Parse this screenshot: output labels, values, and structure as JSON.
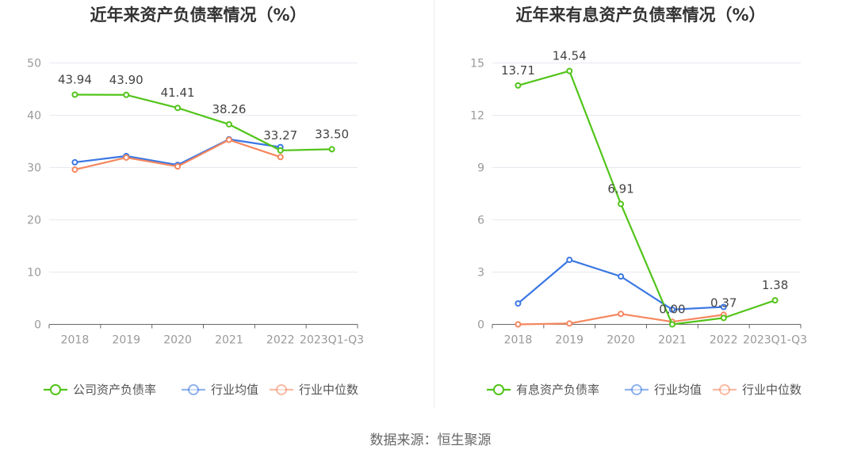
{
  "source_label": "数据来源：恒生聚源",
  "colors": {
    "company": "#52c41a",
    "industry_avg": "#3b77e3",
    "industry_median": "#f5875f",
    "axis_text": "#999999",
    "grid": "#e6e9f0",
    "axis_line": "#666666",
    "label_text": "#444444",
    "title_text": "#333333"
  },
  "chart_data": [
    {
      "type": "line",
      "title": "近年来资产负债率情况（%）",
      "categories": [
        "2018",
        "2019",
        "2020",
        "2021",
        "2022",
        "2023Q1-Q3"
      ],
      "ylim": [
        0,
        50
      ],
      "yticks": [
        "0",
        "10",
        "20",
        "30",
        "40",
        "50"
      ],
      "grid": true,
      "legend_position": "bottom",
      "series": [
        {
          "name": "公司资产负债率",
          "color_key": "company",
          "show_labels": true,
          "values": [
            43.94,
            43.9,
            41.41,
            38.26,
            33.27,
            33.5
          ],
          "labels": [
            "43.94",
            "43.90",
            "41.41",
            "38.26",
            "33.27",
            "33.50"
          ]
        },
        {
          "name": "行业均值",
          "color_key": "industry_avg",
          "show_labels": false,
          "values": [
            31.0,
            32.2,
            30.5,
            35.4,
            33.9,
            null
          ]
        },
        {
          "name": "行业中位数",
          "color_key": "industry_median",
          "show_labels": false,
          "values": [
            29.6,
            31.9,
            30.2,
            35.3,
            32.0,
            null
          ]
        }
      ]
    },
    {
      "type": "line",
      "title": "近年来有息资产负债率情况（%）",
      "categories": [
        "2018",
        "2019",
        "2020",
        "2021",
        "2022",
        "2023Q1-Q3"
      ],
      "ylim": [
        0,
        15
      ],
      "yticks": [
        "0",
        "3",
        "6",
        "9",
        "12",
        "15"
      ],
      "grid": true,
      "legend_position": "bottom",
      "series": [
        {
          "name": "有息资产负债率",
          "color_key": "company",
          "show_labels": true,
          "values": [
            13.71,
            14.54,
            6.91,
            0.0,
            0.37,
            1.38
          ],
          "labels": [
            "13.71",
            "14.54",
            "6.91",
            "0.00",
            "0.37",
            "1.38"
          ]
        },
        {
          "name": "行业均值",
          "color_key": "industry_avg",
          "show_labels": false,
          "values": [
            1.2,
            3.7,
            2.75,
            0.85,
            1.0,
            null
          ]
        },
        {
          "name": "行业中位数",
          "color_key": "industry_median",
          "show_labels": false,
          "values": [
            0.0,
            0.05,
            0.6,
            0.15,
            0.55,
            null
          ]
        }
      ]
    }
  ]
}
